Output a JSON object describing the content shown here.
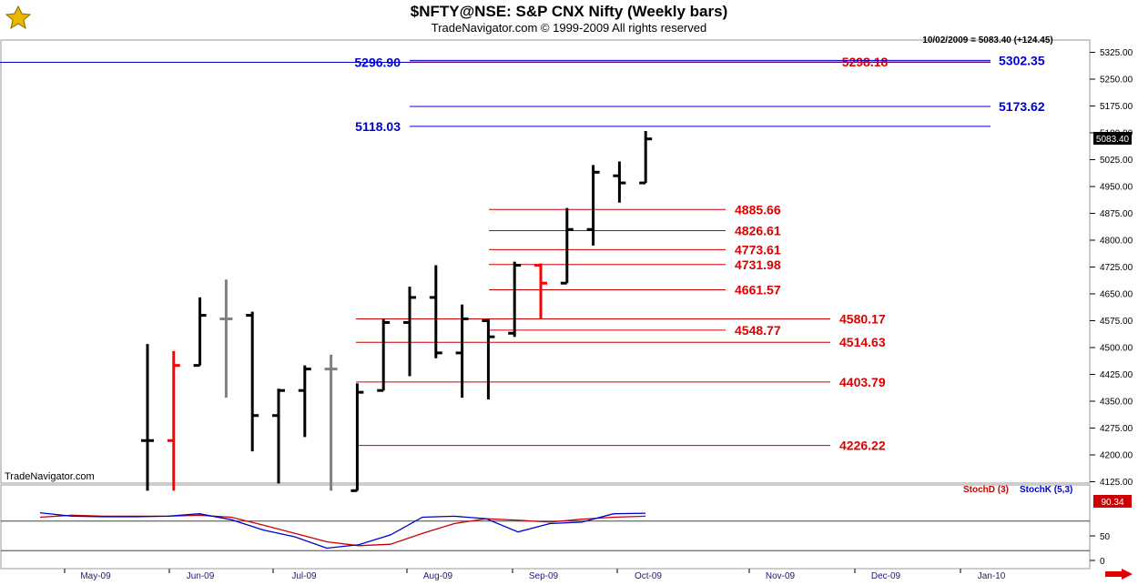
{
  "header": {
    "title": "$NFTY@NSE:  S&P CNX Nifty  (Weekly bars)",
    "copyright": "TradeNavigator.com © 1999-2009 All rights reserved",
    "readout": "10/02/2009 = 5083.40 (+124.45)"
  },
  "watermark": "TradeNavigator.com",
  "price_badge": "5083.40",
  "stoch_badge": "90.34",
  "colors": {
    "up": "#000000",
    "down": "#ff0000",
    "neutral": "#808080",
    "blue_line": "#0000cc",
    "red_line": "#cc0000",
    "stochD": "#cc0000",
    "stochK": "#0000cc"
  },
  "chart_data": [
    {
      "type": "ohlc",
      "ylim": [
        4100,
        5350
      ],
      "y_ticks": [
        "5325.00",
        "5250.00",
        "5175.00",
        "5100.00",
        "5025.00",
        "4950.00",
        "4875.00",
        "4800.00",
        "4725.00",
        "4650.00",
        "4575.00",
        "4500.00",
        "4425.00",
        "4350.00",
        "4275.00",
        "4200.00",
        "4125.00"
      ],
      "x_labels": [
        "May-09",
        "Jun-09",
        "Jul-09",
        "Aug-09",
        "Sep-09",
        "Oct-09",
        "Nov-09",
        "Dec-09",
        "Jan-10"
      ],
      "bars": [
        {
          "idx": 0,
          "high": 4510,
          "low": 4100,
          "open": 4240,
          "close": 4240,
          "color": "up"
        },
        {
          "idx": 1,
          "high": 4490,
          "low": 4100,
          "open": 4240,
          "close": 4450,
          "color": "down"
        },
        {
          "idx": 2,
          "high": 4640,
          "low": 4450,
          "open": 4450,
          "close": 4590,
          "color": "up"
        },
        {
          "idx": 3,
          "high": 4690,
          "low": 4360,
          "open": 4580,
          "close": 4580,
          "color": "neutral"
        },
        {
          "idx": 4,
          "high": 4600,
          "low": 4210,
          "open": 4590,
          "close": 4310,
          "color": "up"
        },
        {
          "idx": 5,
          "high": 4385,
          "low": 4120,
          "open": 4310,
          "close": 4380,
          "color": "up"
        },
        {
          "idx": 6,
          "high": 4450,
          "low": 4250,
          "open": 4380,
          "close": 4440,
          "color": "up"
        },
        {
          "idx": 7,
          "high": 4480,
          "low": 4100,
          "open": 4440,
          "close": 4440,
          "color": "neutral"
        },
        {
          "idx": 8,
          "high": 4400,
          "low": 4100,
          "open": 4100,
          "close": 4375,
          "color": "up"
        },
        {
          "idx": 9,
          "high": 4580,
          "low": 4380,
          "open": 4380,
          "close": 4570,
          "color": "up"
        },
        {
          "idx": 10,
          "high": 4670,
          "low": 4420,
          "open": 4570,
          "close": 4640,
          "color": "up"
        },
        {
          "idx": 11,
          "high": 4730,
          "low": 4470,
          "open": 4640,
          "close": 4485,
          "color": "up"
        },
        {
          "idx": 12,
          "high": 4620,
          "low": 4360,
          "open": 4485,
          "close": 4580,
          "color": "up"
        },
        {
          "idx": 13,
          "high": 4580,
          "low": 4355,
          "open": 4575,
          "close": 4530,
          "color": "up"
        },
        {
          "idx": 14,
          "high": 4740,
          "low": 4530,
          "open": 4540,
          "close": 4730,
          "color": "up"
        },
        {
          "idx": 15,
          "high": 4735,
          "low": 4580,
          "open": 4730,
          "close": 4680,
          "color": "down"
        },
        {
          "idx": 16,
          "high": 4890,
          "low": 4680,
          "open": 4680,
          "close": 4830,
          "color": "up"
        },
        {
          "idx": 17,
          "high": 5010,
          "low": 4785,
          "open": 4830,
          "close": 4990,
          "color": "up"
        },
        {
          "idx": 18,
          "high": 5020,
          "low": 4905,
          "open": 4980,
          "close": 4960,
          "color": "up"
        },
        {
          "idx": 19,
          "high": 5105,
          "low": 4960,
          "open": 4960,
          "close": 5083,
          "color": "up"
        }
      ],
      "levels": [
        {
          "value": 5296.9,
          "label": "5296.90",
          "color": "blue",
          "full": true
        },
        {
          "value": 5298.18,
          "label": "5298.18",
          "color": "red",
          "full": true
        },
        {
          "value": 5302.35,
          "label": "5302.35",
          "color": "blue",
          "full": false
        },
        {
          "value": 5173.62,
          "label": "5173.62",
          "color": "blue",
          "full": false
        },
        {
          "value": 5118.03,
          "label": "5118.03",
          "color": "blue",
          "full": false
        },
        {
          "value": 4885.66,
          "label": "4885.66",
          "color": "red",
          "full": false
        },
        {
          "value": 4826.61,
          "label": "4826.61",
          "color": "red",
          "full": false
        },
        {
          "value": 4773.61,
          "label": "4773.61",
          "color": "red",
          "full": false
        },
        {
          "value": 4731.98,
          "label": "4731.98",
          "color": "red",
          "full": false
        },
        {
          "value": 4661.57,
          "label": "4661.57",
          "color": "red",
          "full": false
        },
        {
          "value": 4580.17,
          "label": "4580.17",
          "color": "red",
          "full": false
        },
        {
          "value": 4548.77,
          "label": "4548.77",
          "color": "red",
          "full": false
        },
        {
          "value": 4514.63,
          "label": "4514.63",
          "color": "red",
          "full": false
        },
        {
          "value": 4403.79,
          "label": "4403.79",
          "color": "red",
          "full": false
        },
        {
          "value": 4226.22,
          "label": "4226.22",
          "color": "red",
          "full": false
        }
      ]
    },
    {
      "type": "line",
      "ylim": [
        0,
        100
      ],
      "y_ticks": [
        "50",
        "0"
      ],
      "series": [
        {
          "name": "StochD (3)",
          "color": "#cc0000",
          "values": [
            88,
            92,
            90,
            90,
            90,
            92,
            88,
            72,
            55,
            38,
            30,
            33,
            55,
            75,
            85,
            82,
            78,
            84,
            88,
            90
          ]
        },
        {
          "name": "StochK (5,3)",
          "color": "#0000cc",
          "values": [
            97,
            90,
            89,
            89,
            90,
            95,
            83,
            62,
            48,
            25,
            32,
            52,
            88,
            90,
            85,
            58,
            75,
            78,
            95,
            96
          ]
        }
      ]
    }
  ]
}
